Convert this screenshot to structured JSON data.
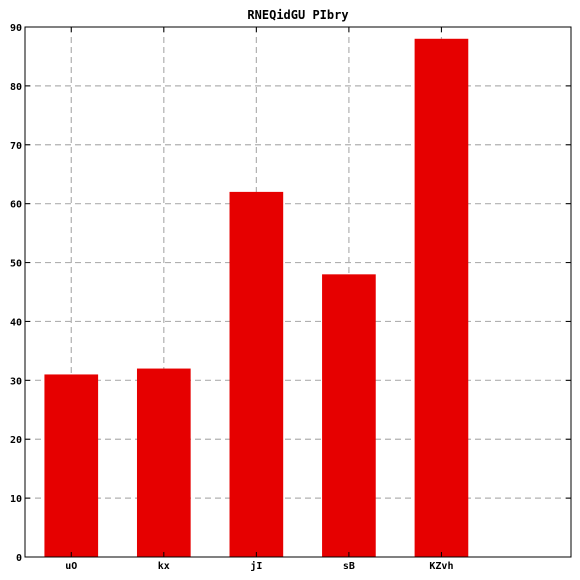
{
  "chart_data": {
    "type": "bar",
    "title": "RNEQidGU PIbry",
    "xlabel": "",
    "ylabel": "",
    "categories": [
      "uO",
      "kx",
      "jI",
      "sB",
      "KZvh"
    ],
    "values": [
      31,
      32,
      62,
      48,
      88
    ],
    "ylim": [
      0,
      90
    ],
    "yticks": [
      0,
      10,
      20,
      30,
      40,
      50,
      60,
      70,
      80,
      90
    ],
    "grid": true,
    "legend": "none",
    "bar_color": "#e60000"
  }
}
